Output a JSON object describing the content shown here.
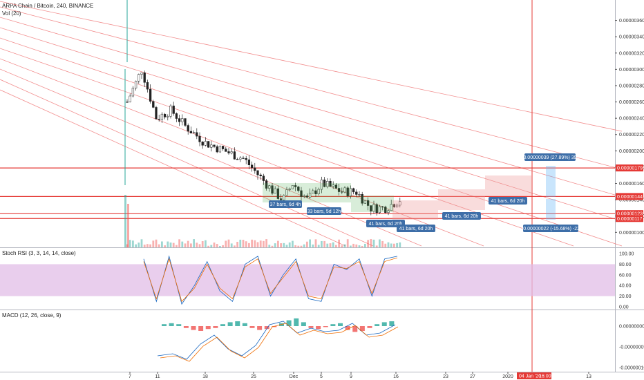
{
  "chart_data": [
    {
      "type": "candlestick",
      "title": "ARPA Chain / Bitcoin, 240, BINANCE",
      "volume_label": "Vol (20)",
      "ylim": [
        8.5e-07,
        3.8e-06
      ],
      "y_ticks": [
        "0.00000360",
        "0.00000340",
        "0.00000320",
        "0.00000300",
        "0.00000280",
        "0.00000260",
        "0.00000240",
        "0.00000220",
        "0.00000200",
        "0.00000180",
        "0.00000160",
        "0.00000140",
        "0.00000120",
        "0.00000100"
      ],
      "x_ticks": [
        "7",
        "11",
        "18",
        "25",
        "Dec",
        "5",
        "9",
        "16",
        "23",
        "27",
        "2020",
        "13"
      ],
      "close_path": [
        [
          0,
          2.6e-06
        ],
        [
          3,
          3e-06
        ],
        [
          6,
          2.4e-06
        ],
        [
          9,
          2.5e-06
        ],
        [
          12,
          2.3e-06
        ],
        [
          16,
          2.1e-06
        ],
        [
          20,
          2e-06
        ],
        [
          24,
          1.9e-06
        ],
        [
          27,
          1.7e-06
        ],
        [
          30,
          1.5e-06
        ],
        [
          32,
          1.4e-06
        ],
        [
          34,
          1.6e-06
        ],
        [
          37,
          1.4e-06
        ],
        [
          40,
          1.6e-06
        ],
        [
          44,
          1.5e-06
        ],
        [
          47,
          1.5e-06
        ],
        [
          50,
          1.3e-06
        ],
        [
          53,
          1.3e-06
        ],
        [
          56,
          1.4e-06
        ]
      ],
      "horizontal_levels": [
        "0.00000179",
        "0.00000144",
        "0.00000123",
        "0.00000117"
      ],
      "annotations": [
        "37 bars, 6d 4h",
        "33 bars, 5d 12h",
        "41 bars, 6d 20h",
        "41 bars, 6d 20h",
        "41 bars, 6d 20h",
        "41 bars, 6d 20h",
        "0.00000039 (27.89%) 39",
        "-0.00000022 (-15.68%) -22"
      ],
      "crosshair_date": "04 Jan '20",
      "crosshair_time": "16:00",
      "accent_color": "#f23645",
      "up_color": "#26a69a",
      "down_color": "#ef5350"
    },
    {
      "type": "line",
      "title": "Stoch RSI (3, 3, 14, 14, close)",
      "ylim": [
        0,
        100
      ],
      "y_ticks": [
        "100.00",
        "80.00",
        "60.00",
        "40.00",
        "20.00",
        "0.00"
      ],
      "band": [
        20,
        80
      ],
      "series": [
        {
          "values": [
            90,
            10,
            95,
            5,
            40,
            85,
            30,
            10,
            80,
            95,
            20,
            60,
            90,
            15,
            10,
            80,
            70,
            90,
            20,
            90,
            95
          ]
        },
        {
          "values": [
            85,
            15,
            90,
            10,
            35,
            80,
            35,
            15,
            75,
            90,
            25,
            55,
            85,
            20,
            15,
            75,
            72,
            85,
            25,
            85,
            92
          ]
        }
      ]
    },
    {
      "type": "bar",
      "title": "MACD (12, 26, close, 9)",
      "y_ticks": [
        "0.00000000",
        "-0.00000005",
        "-0.00000010"
      ],
      "histogram": [
        2,
        3,
        2,
        -2,
        -4,
        -5,
        -3,
        -2,
        2,
        4,
        5,
        3,
        -2,
        -4,
        -3,
        -1,
        3,
        6,
        8,
        4,
        -2,
        -3,
        -1,
        2,
        3,
        -4,
        -6,
        -5,
        -2,
        2,
        4,
        5
      ]
    }
  ]
}
